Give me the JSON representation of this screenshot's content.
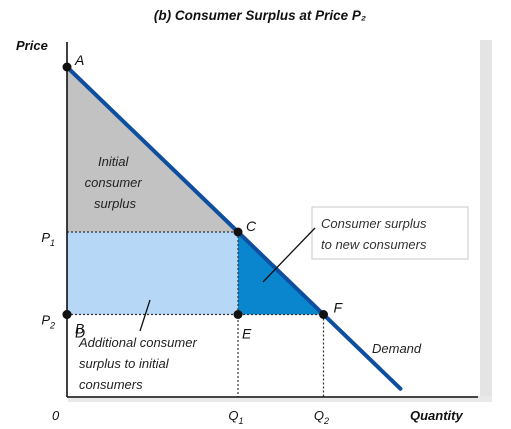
{
  "chart_data": {
    "type": "area",
    "title": "(b) Consumer Surplus at Price P₂",
    "xlabel": "Quantity",
    "ylabel": "Price",
    "origin_label": "0",
    "x_ticks": [
      {
        "base": "Q",
        "sub": "1",
        "value": 1
      },
      {
        "base": "Q",
        "sub": "2",
        "value": 2
      }
    ],
    "y_ticks": [
      {
        "base": "P",
        "sub": "1",
        "value": 1
      },
      {
        "base": "P",
        "sub": "2",
        "value": 2
      }
    ],
    "demand": {
      "name": "Demand",
      "points": [
        [
          0,
          4
        ],
        [
          2,
          2
        ],
        [
          3.9,
          0.1
        ]
      ],
      "color": "#0d4f9e"
    },
    "points": [
      {
        "label": "A",
        "x": 0,
        "y": 4
      },
      {
        "label": "B",
        "x": 0,
        "y": 1
      },
      {
        "label": "C",
        "x": 2,
        "y": 2
      },
      {
        "label": "D",
        "x": 0,
        "y": 1
      },
      {
        "label": "E",
        "x": 2,
        "y": 1
      },
      {
        "label": "F",
        "x": 3,
        "y": 1
      }
    ],
    "regions": [
      {
        "label": "Initial consumer surplus",
        "lines": [
          "Initial",
          "consumer",
          "surplus"
        ],
        "color": "#c2c2c2"
      },
      {
        "label": "Additional consumer surplus to initial consumers",
        "lines": [
          "Additional consumer",
          "surplus to initial",
          "consumers"
        ],
        "color": "#b7d7f7"
      },
      {
        "label": "Consumer surplus to new consumers",
        "lines": [
          "Consumer surplus",
          "to new consumers"
        ],
        "color": "#0a86cf"
      }
    ],
    "grid": false
  }
}
